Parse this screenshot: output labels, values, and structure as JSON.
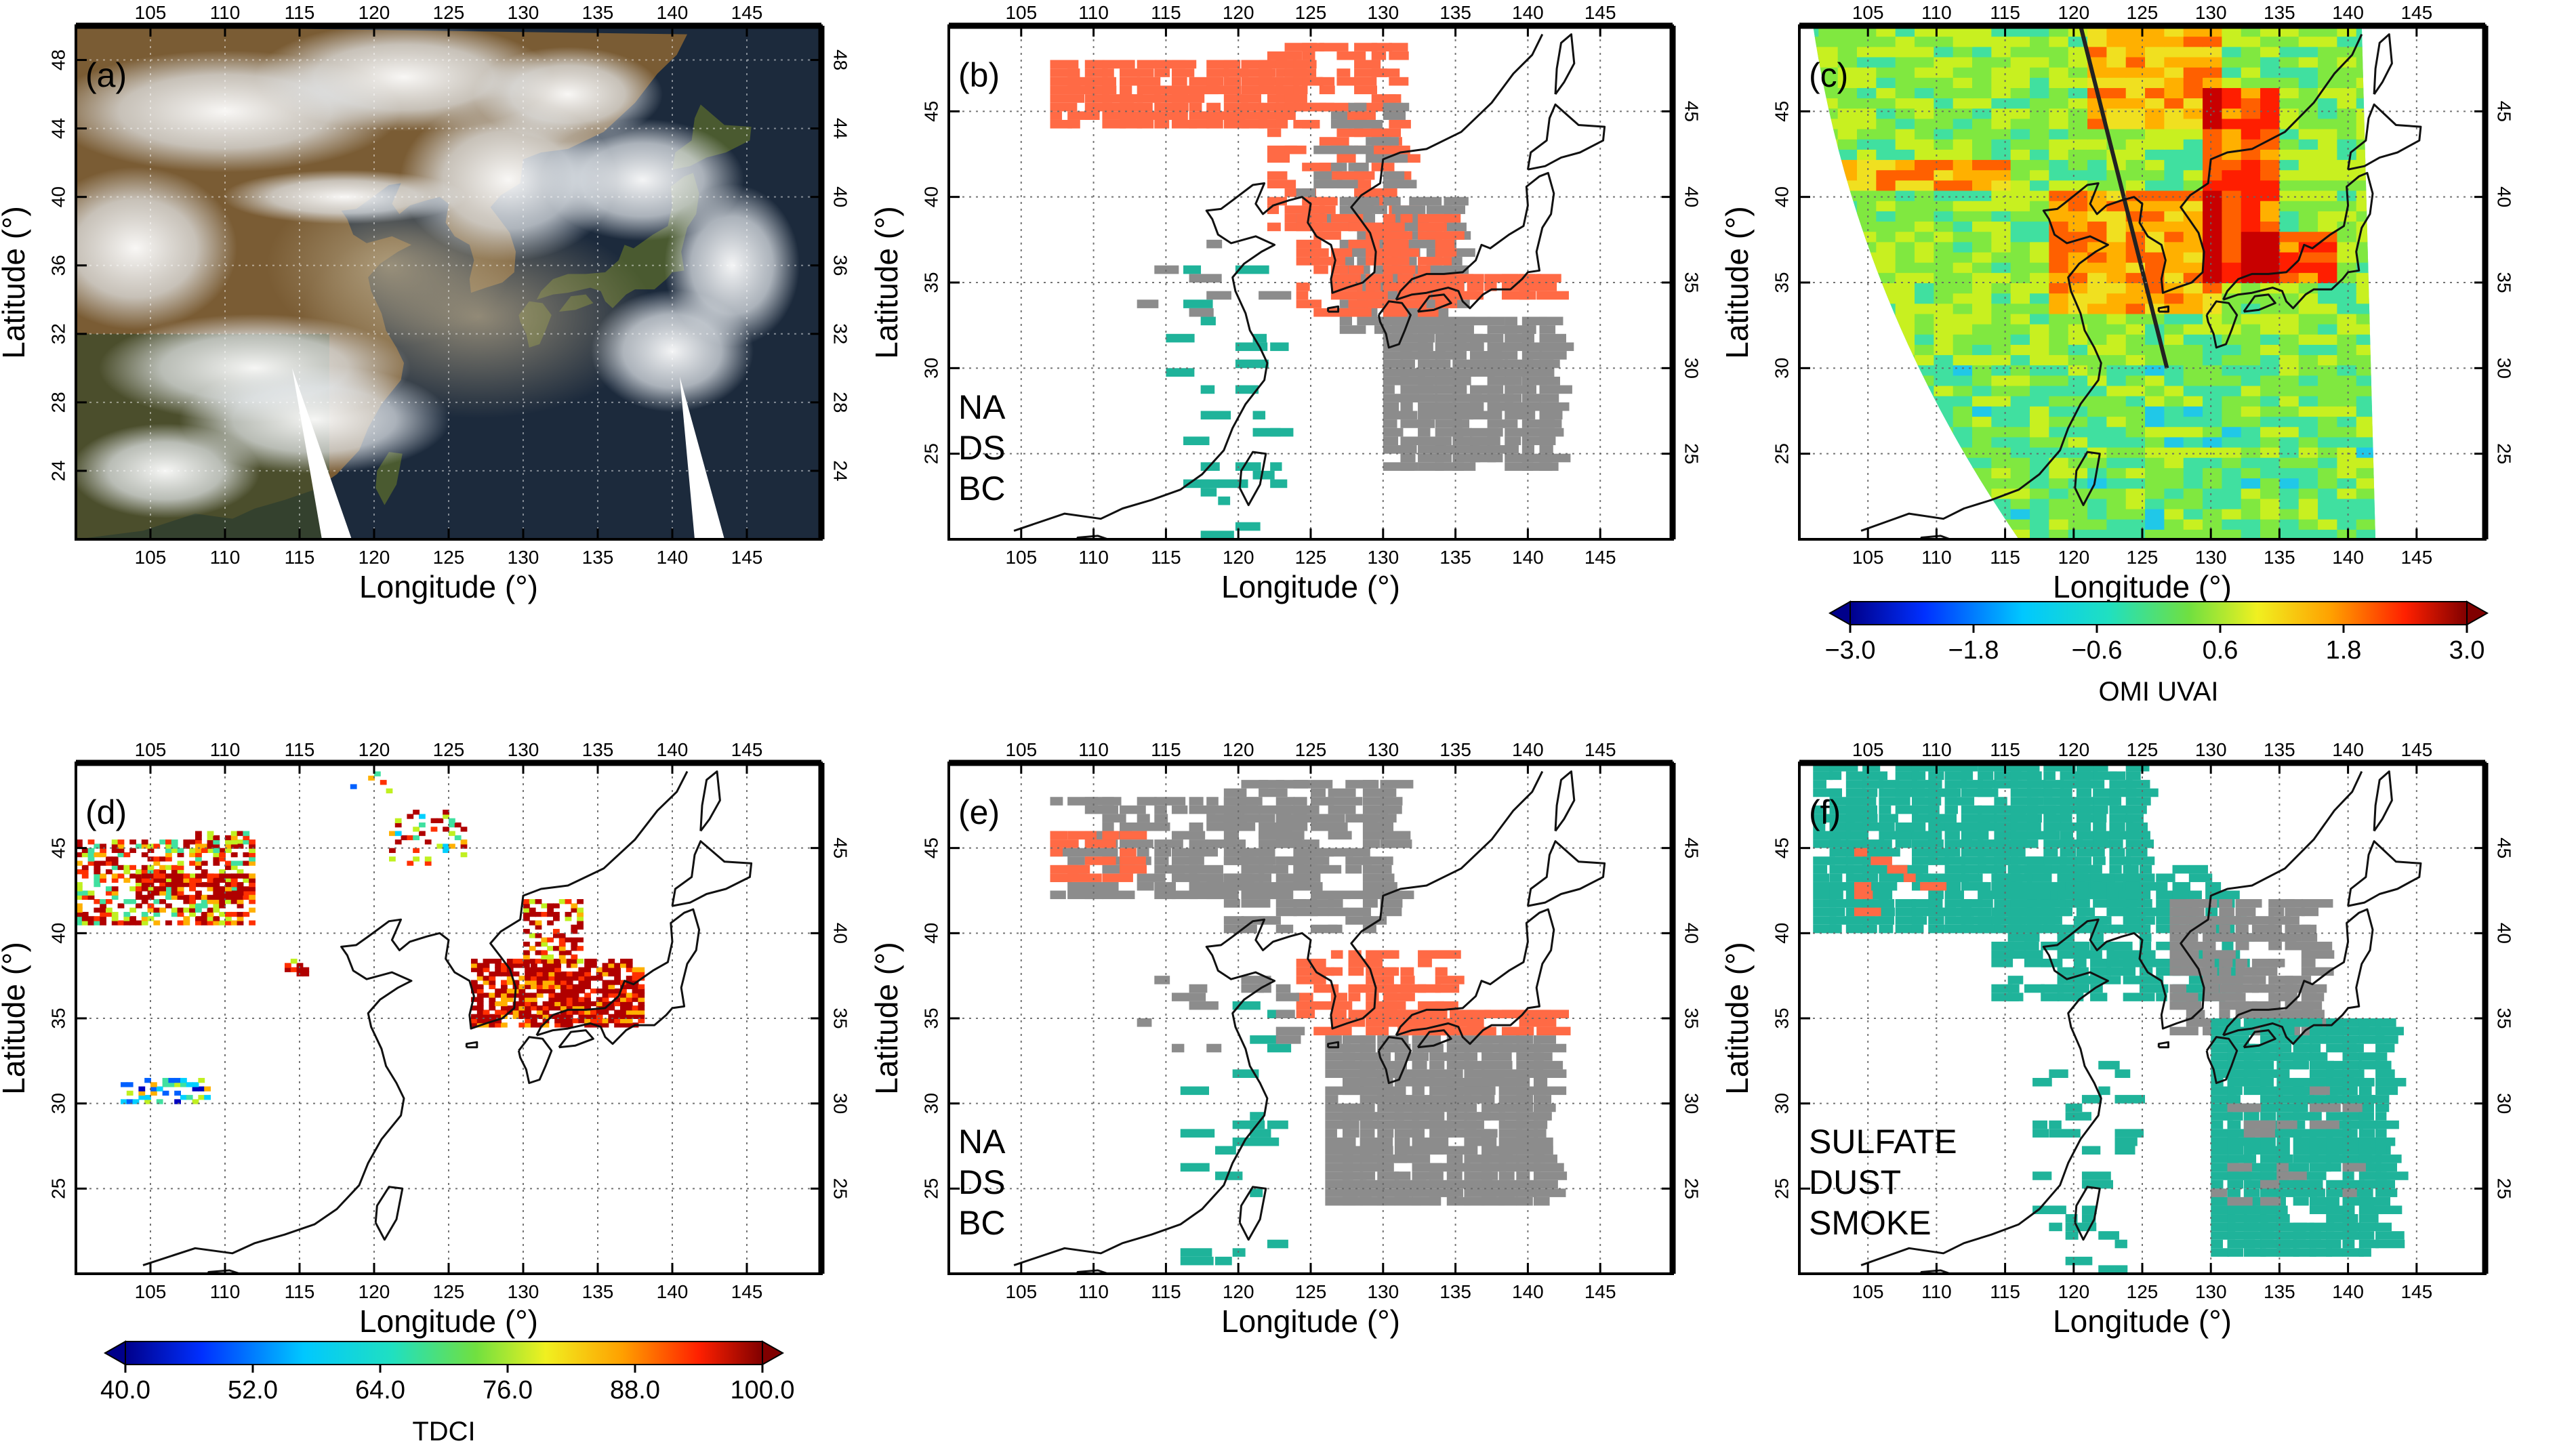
{
  "figure": {
    "x_axis_label": "Longitude (°)",
    "y_axis_label": "Latitude (°)",
    "lon_ticks": [
      "105",
      "110",
      "115",
      "120",
      "125",
      "130",
      "135",
      "140",
      "145"
    ],
    "lat_ticks": [
      "25",
      "30",
      "35",
      "40",
      "45"
    ],
    "lat_ticks_a": [
      "24",
      "28",
      "32",
      "36",
      "40",
      "44",
      "48"
    ]
  },
  "panels": [
    {
      "id": "a",
      "tag": "(a)",
      "kind": "satellite-image"
    },
    {
      "id": "b",
      "tag": "(b)",
      "kind": "classification",
      "legend": [
        {
          "label": "NA",
          "color": "#1fb39a"
        },
        {
          "label": "DS",
          "color": "#ff6a45"
        },
        {
          "label": "BC",
          "color": "#8c8c8c"
        }
      ]
    },
    {
      "id": "c",
      "tag": "(c)",
      "kind": "uvai-field",
      "colorbar": {
        "title": "OMI UVAI",
        "ticks": [
          "−3.0",
          "−1.8",
          "−0.6",
          "0.6",
          "1.8",
          "3.0"
        ]
      }
    },
    {
      "id": "d",
      "tag": "(d)",
      "kind": "tdci-field",
      "colorbar": {
        "title": "TDCI",
        "ticks": [
          "40.0",
          "52.0",
          "64.0",
          "76.0",
          "88.0",
          "100.0"
        ]
      }
    },
    {
      "id": "e",
      "tag": "(e)",
      "kind": "classification",
      "legend": [
        {
          "label": "NA",
          "color": "#1fb39a"
        },
        {
          "label": "DS",
          "color": "#ff6a45"
        },
        {
          "label": "BC",
          "color": "#8c8c8c"
        }
      ]
    },
    {
      "id": "f",
      "tag": "(f)",
      "kind": "classification",
      "legend": [
        {
          "label": "SULFATE",
          "color": "#1fb39a"
        },
        {
          "label": "DUST",
          "color": "#ff6a45"
        },
        {
          "label": "SMOKE",
          "color": "#8c8c8c"
        }
      ]
    }
  ],
  "colors": {
    "na": "#1fb39a",
    "dust": "#ff6a45",
    "bc": "#8c8c8c",
    "coast": "#111111",
    "grid": "#666666"
  },
  "map_extent": {
    "lon": [
      100,
      150
    ],
    "lat": [
      20,
      50
    ]
  }
}
